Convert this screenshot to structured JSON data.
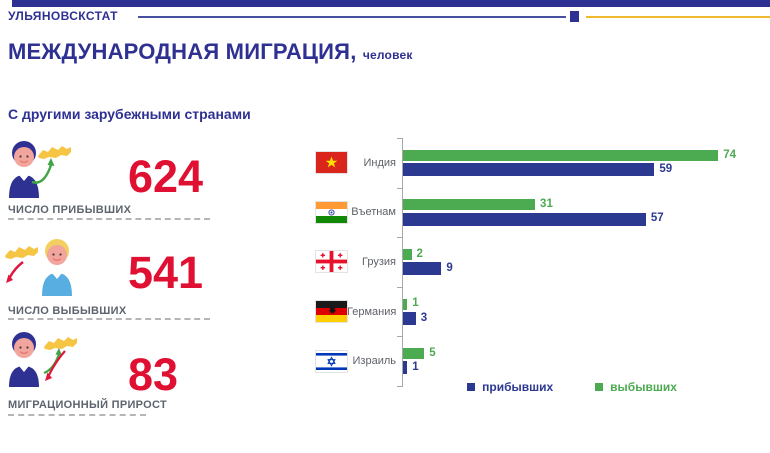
{
  "header": {
    "brand": "УЛЬЯНОВСКСТАТ",
    "title": "МЕЖДУНАРОДНАЯ МИГРАЦИЯ,",
    "unit": "человек",
    "subtitle": "С другими зарубежными странами"
  },
  "stats": [
    {
      "value": "624",
      "label": "ЧИСЛО ПРИБЫВШИХ",
      "icon": "person-arriving-to-russia-map"
    },
    {
      "value": "541",
      "label": "ЧИСЛО ВЫБЫВШИХ",
      "icon": "person-departing-from-russia-map"
    },
    {
      "value": "83",
      "label": "МИГРАЦИОННЫЙ ПРИРОСТ",
      "icon": "person-with-in-out-arrows-map"
    }
  ],
  "colors": {
    "navy": "#2e3192",
    "bar_blue": "#2b3990",
    "bar_green": "#4cab50",
    "green_text": "#3fa546",
    "red_number": "#e01033",
    "yellow_rule": "#eebb2e",
    "label_gray": "#5d646e",
    "axis_gray": "#a8a8a8"
  },
  "chart_data": {
    "type": "bar",
    "orientation": "horizontal",
    "categories": [
      "Индия",
      "Въетнам",
      "Грузия",
      "Германия",
      "Израиль"
    ],
    "flag_icons": [
      "vietnam-flag",
      "india-flag",
      "georgia-flag",
      "germany-flag",
      "israel-flag"
    ],
    "series": [
      {
        "name": "выбывших",
        "color": "#4cab50",
        "values": [
          74,
          31,
          2,
          1,
          5
        ]
      },
      {
        "name": "прибывших",
        "color": "#2b3990",
        "values": [
          59,
          57,
          9,
          3,
          1
        ]
      }
    ],
    "data_labels": true,
    "grid": false,
    "xlim": [
      0,
      78
    ],
    "legend_position": "bottom",
    "legend": [
      {
        "label": "прибывших",
        "color": "#2b3990"
      },
      {
        "label": "выбывших",
        "color": "#4cab50"
      }
    ]
  }
}
